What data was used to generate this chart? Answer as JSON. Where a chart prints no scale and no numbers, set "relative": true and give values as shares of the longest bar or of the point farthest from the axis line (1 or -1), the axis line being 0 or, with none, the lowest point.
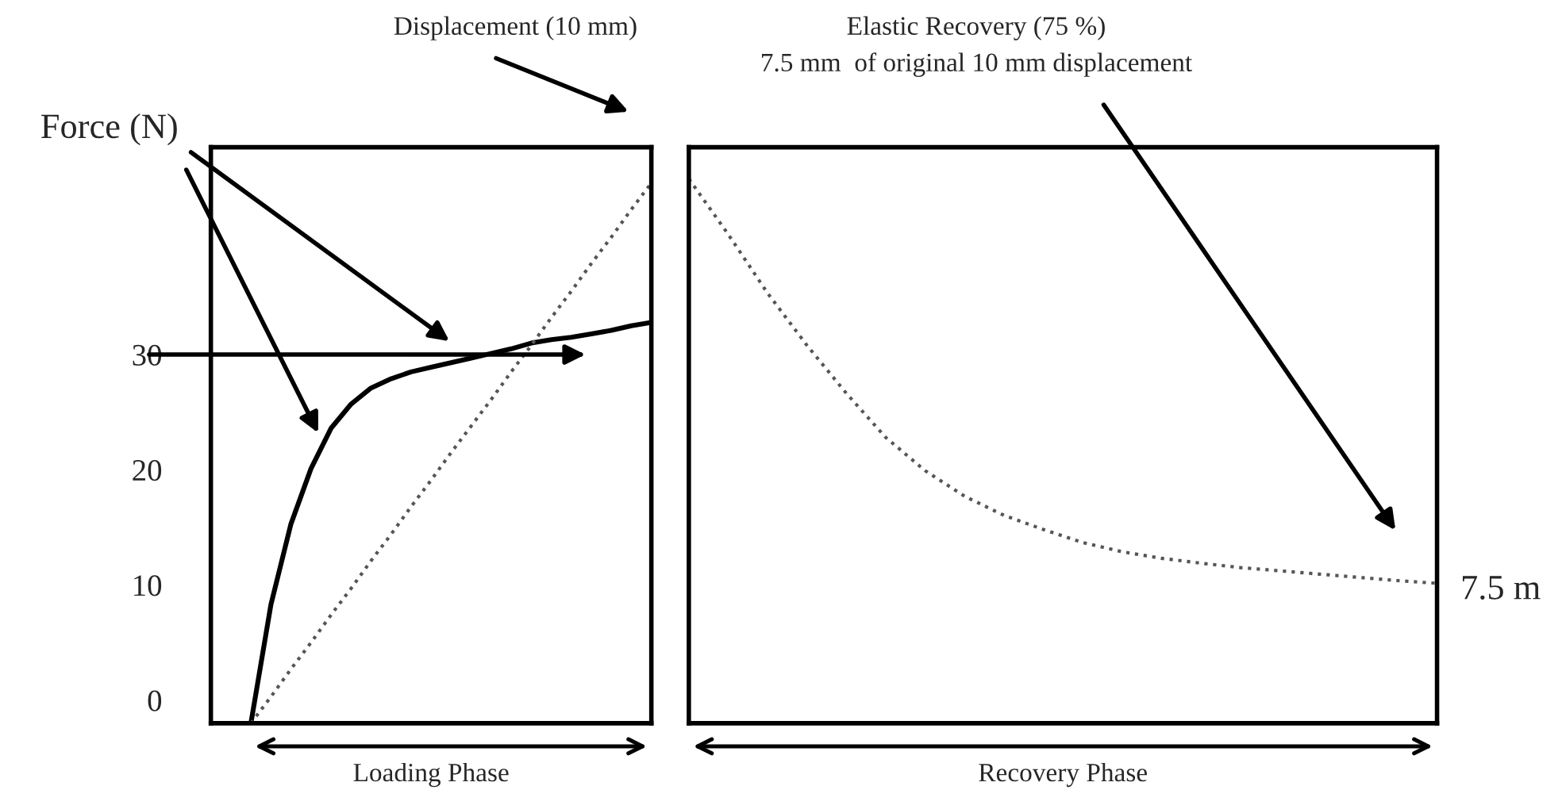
{
  "chart_data": [
    {
      "type": "line",
      "xlabel": "Loading Phase",
      "categories": [
        null,
        null,
        null,
        null,
        null,
        null,
        null,
        null,
        null,
        null,
        null,
        null,
        null,
        null,
        null,
        null,
        null,
        null,
        null,
        null,
        null,
        null,
        null
      ],
      "ylim": [
        -2,
        48
      ],
      "yticks": [
        0,
        10,
        20,
        30
      ],
      "tick_labels": "y",
      "grid": false,
      "series": [
        {
          "color": "#000000",
          "line_style": "solid",
          "values": [
            null,
            null,
            -2,
            8.3,
            15.3,
            20.1,
            23.6,
            25.7,
            27.1,
            27.9,
            28.5,
            28.9,
            29.3,
            29.7,
            30.1,
            30.5,
            31.0,
            31.3,
            31.5,
            31.8,
            32.1,
            32.5,
            32.8
          ]
        },
        {
          "color": "#555555",
          "line_style": "dotted",
          "values": [
            null,
            null,
            -2,
            0.3,
            2.7,
            5.0,
            7.4,
            9.7,
            12.1,
            14.4,
            16.8,
            19.1,
            21.5,
            23.8,
            26.1,
            28.5,
            30.8,
            33.2,
            35.5,
            37.9,
            40.2,
            42.6,
            44.9
          ]
        }
      ],
      "ref_lines": [
        {
          "axis": "y",
          "value": 30,
          "color": "#000000"
        }
      ],
      "annotations": [
        "Force (N)",
        "Displacement (10 mm)"
      ]
    },
    {
      "type": "line",
      "relative": true,
      "xlabel": "Recovery Phase",
      "categories": [
        null,
        null,
        null,
        null,
        null,
        null,
        null,
        null,
        null,
        null,
        null,
        null,
        null,
        null,
        null,
        null,
        null,
        null,
        null,
        null
      ],
      "tick_labels": false,
      "grid": false,
      "series": [
        {
          "color": "#555555",
          "line_style": "dotted",
          "values": [
            1.0,
            0.898,
            0.79,
            0.694,
            0.606,
            0.525,
            0.464,
            0.417,
            0.382,
            0.356,
            0.332,
            0.315,
            0.303,
            0.294,
            0.286,
            0.28,
            0.274,
            0.268,
            0.262,
            0.257
          ]
        }
      ],
      "annotations": [
        "Elastic Recovery (75 %)",
        "7.5 mm  of original 10 mm displacement",
        "7.5 m"
      ]
    }
  ]
}
